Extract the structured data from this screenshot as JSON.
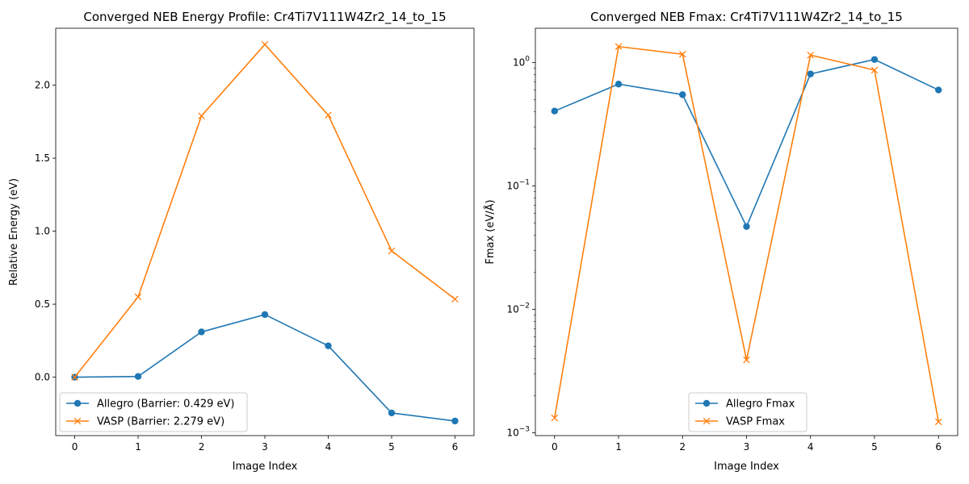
{
  "chart_data": [
    {
      "type": "line",
      "title": "Converged NEB Energy Profile: Cr4Ti7V111W4Zr2_14_to_15",
      "xlabel": "Image Index",
      "ylabel": "Relative Energy (eV)",
      "x": [
        0,
        1,
        2,
        3,
        4,
        5,
        6
      ],
      "xlim": [
        -0.3,
        6.3
      ],
      "ylim": [
        -0.4,
        2.39
      ],
      "yscale": "linear",
      "xticks": [
        "0",
        "1",
        "2",
        "3",
        "4",
        "5",
        "6"
      ],
      "yticks": [
        {
          "value": 0.0,
          "label": "0.0"
        },
        {
          "value": 0.5,
          "label": "0.5"
        },
        {
          "value": 1.0,
          "label": "1.0"
        },
        {
          "value": 1.5,
          "label": "1.5"
        },
        {
          "value": 2.0,
          "label": "2.0"
        }
      ],
      "grid": false,
      "legend_position": "lower-left",
      "series": [
        {
          "name": "Allegro (Barrier: 0.429 eV)",
          "marker": "circle",
          "color": "#1f77b4",
          "values": [
            0.0,
            0.005,
            0.31,
            0.429,
            0.215,
            -0.245,
            -0.3
          ]
        },
        {
          "name": "VASP (Barrier: 2.279 eV)",
          "marker": "x",
          "color": "#ff7f0e",
          "values": [
            0.0,
            0.55,
            1.79,
            2.279,
            1.795,
            0.865,
            0.535
          ]
        }
      ]
    },
    {
      "type": "line",
      "title": "Converged NEB Fmax: Cr4Ti7V111W4Zr2_14_to_15",
      "xlabel": "Image Index",
      "ylabel": "Fmax (eV/Å)",
      "x": [
        0,
        1,
        2,
        3,
        4,
        5,
        6
      ],
      "xlim": [
        -0.3,
        6.3
      ],
      "ylim": [
        0.00095,
        1.9
      ],
      "yscale": "log",
      "xticks": [
        "0",
        "1",
        "2",
        "3",
        "4",
        "5",
        "6"
      ],
      "yticks": [
        {
          "value": 0.001,
          "label": "10",
          "exp": "−3"
        },
        {
          "value": 0.01,
          "label": "10",
          "exp": "−2"
        },
        {
          "value": 0.1,
          "label": "10",
          "exp": "−1"
        },
        {
          "value": 1.0,
          "label": "10",
          "exp": "0"
        }
      ],
      "grid": false,
      "legend_position": "lower-center",
      "series": [
        {
          "name": "Allegro Fmax",
          "marker": "circle",
          "color": "#1f77b4",
          "values": [
            0.405,
            0.67,
            0.55,
            0.047,
            0.81,
            1.06,
            0.6
          ]
        },
        {
          "name": "VASP Fmax",
          "marker": "x",
          "color": "#ff7f0e",
          "values": [
            0.00132,
            1.35,
            1.17,
            0.0039,
            1.15,
            0.87,
            0.00123
          ]
        }
      ]
    }
  ]
}
